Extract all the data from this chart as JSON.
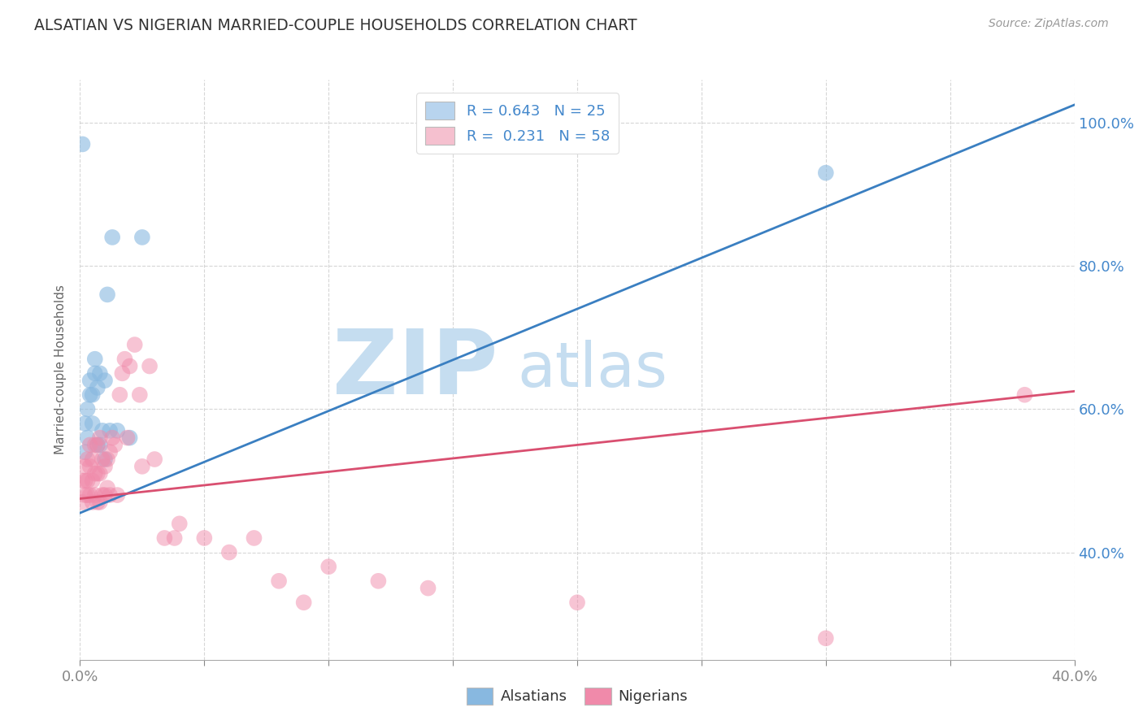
{
  "title": "ALSATIAN VS NIGERIAN MARRIED-COUPLE HOUSEHOLDS CORRELATION CHART",
  "source": "Source: ZipAtlas.com",
  "ylabel": "Married-couple Households",
  "yaxis_ticks": [
    "40.0%",
    "60.0%",
    "80.0%",
    "100.0%"
  ],
  "yaxis_tick_vals": [
    0.4,
    0.6,
    0.8,
    1.0
  ],
  "xlim": [
    0.0,
    0.4
  ],
  "ylim": [
    0.25,
    1.06
  ],
  "legend_entries": [
    {
      "label": "R = 0.643   N = 25",
      "color": "#b8d4ee"
    },
    {
      "label": "R =  0.231   N = 58",
      "color": "#f5c0cf"
    }
  ],
  "alsatian_color": "#88b8e0",
  "nigerian_color": "#f08aaa",
  "alsatian_line_color": "#3a7fc1",
  "nigerian_line_color": "#d94f70",
  "watermark_ZIP": "ZIP",
  "watermark_atlas": "atlas",
  "watermark_color_ZIP": "#c5ddf0",
  "watermark_color_atlas": "#c5ddf0",
  "alsatian_scatter_x": [
    0.002,
    0.002,
    0.003,
    0.003,
    0.004,
    0.004,
    0.005,
    0.005,
    0.006,
    0.006,
    0.007,
    0.007,
    0.008,
    0.008,
    0.009,
    0.01,
    0.01,
    0.011,
    0.012,
    0.013,
    0.015,
    0.02,
    0.025,
    0.3,
    0.001
  ],
  "alsatian_scatter_y": [
    0.54,
    0.58,
    0.56,
    0.6,
    0.62,
    0.64,
    0.58,
    0.62,
    0.65,
    0.67,
    0.55,
    0.63,
    0.55,
    0.65,
    0.57,
    0.53,
    0.64,
    0.76,
    0.57,
    0.84,
    0.57,
    0.56,
    0.84,
    0.93,
    0.97
  ],
  "nigerian_scatter_x": [
    0.001,
    0.001,
    0.002,
    0.002,
    0.002,
    0.003,
    0.003,
    0.003,
    0.004,
    0.004,
    0.004,
    0.005,
    0.005,
    0.005,
    0.006,
    0.006,
    0.006,
    0.007,
    0.007,
    0.007,
    0.008,
    0.008,
    0.008,
    0.009,
    0.009,
    0.01,
    0.01,
    0.011,
    0.011,
    0.012,
    0.012,
    0.013,
    0.014,
    0.015,
    0.016,
    0.017,
    0.018,
    0.019,
    0.02,
    0.022,
    0.024,
    0.025,
    0.028,
    0.03,
    0.034,
    0.038,
    0.04,
    0.05,
    0.06,
    0.07,
    0.08,
    0.09,
    0.1,
    0.12,
    0.14,
    0.2,
    0.3,
    0.38
  ],
  "nigerian_scatter_y": [
    0.47,
    0.5,
    0.48,
    0.5,
    0.52,
    0.48,
    0.5,
    0.53,
    0.48,
    0.52,
    0.55,
    0.47,
    0.5,
    0.53,
    0.48,
    0.51,
    0.55,
    0.47,
    0.51,
    0.55,
    0.47,
    0.51,
    0.56,
    0.48,
    0.53,
    0.48,
    0.52,
    0.49,
    0.53,
    0.48,
    0.54,
    0.56,
    0.55,
    0.48,
    0.62,
    0.65,
    0.67,
    0.56,
    0.66,
    0.69,
    0.62,
    0.52,
    0.66,
    0.53,
    0.42,
    0.42,
    0.44,
    0.42,
    0.4,
    0.42,
    0.36,
    0.33,
    0.38,
    0.36,
    0.35,
    0.33,
    0.28,
    0.62
  ],
  "alsatian_line_x": [
    0.0,
    0.4
  ],
  "alsatian_line_y": [
    0.455,
    1.025
  ],
  "nigerian_line_x": [
    0.0,
    0.4
  ],
  "nigerian_line_y": [
    0.475,
    0.625
  ],
  "bg_color": "#ffffff",
  "grid_color": "#cccccc",
  "title_color": "#333333",
  "label_color": "#4488cc",
  "axis_text_color": "#4488cc"
}
